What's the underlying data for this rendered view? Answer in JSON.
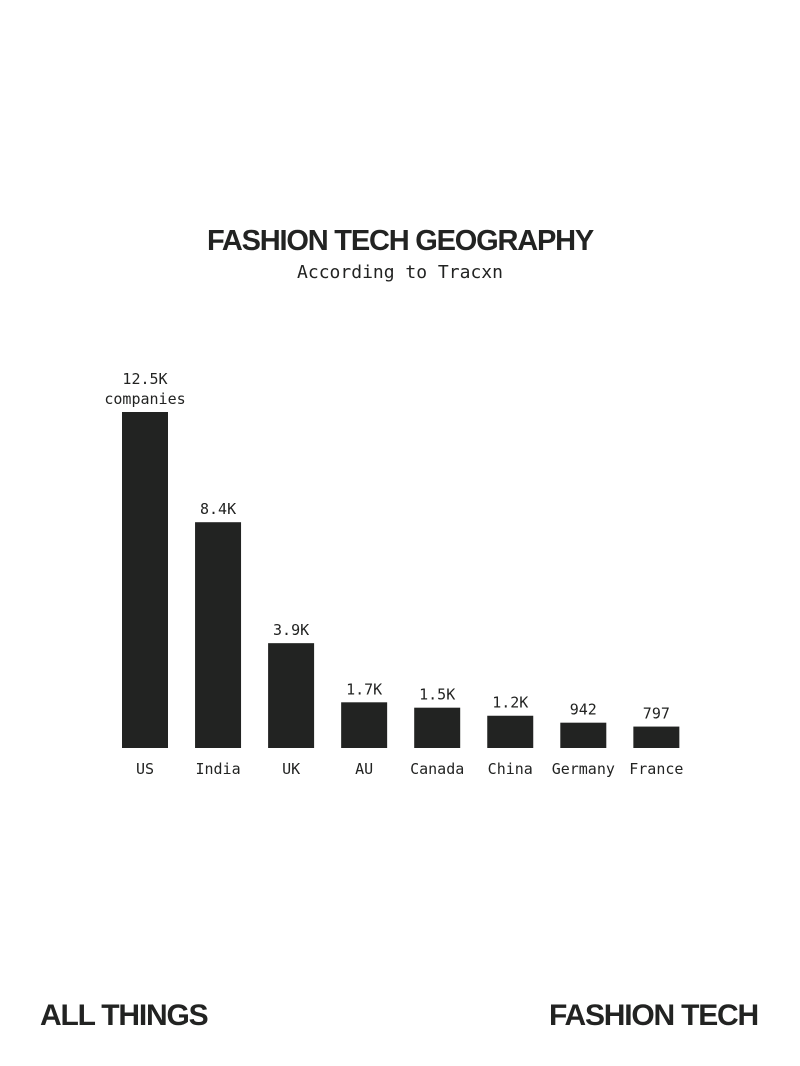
{
  "chart_data": {
    "type": "bar",
    "title": "FASHION TECH GEOGRAPHY",
    "subtitle": "According to Tracxn",
    "categories": [
      "US",
      "India",
      "UK",
      "AU",
      "Canada",
      "China",
      "Germany",
      "France"
    ],
    "values": [
      12500,
      8400,
      3900,
      1700,
      1500,
      1200,
      942,
      797
    ],
    "value_labels": [
      "12.5K companies",
      "8.4K",
      "3.9K",
      "1.7K",
      "1.5K",
      "1.2K",
      "942",
      "797"
    ],
    "color": "#222322"
  },
  "footer": {
    "left": "ALL THINGS",
    "right": "FASHION TECH"
  }
}
